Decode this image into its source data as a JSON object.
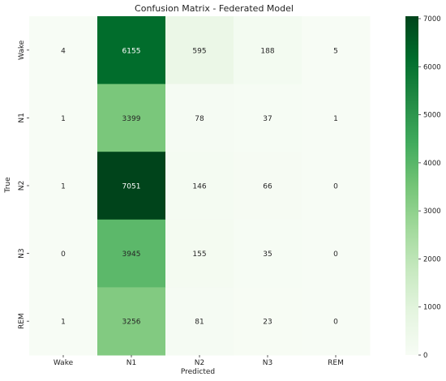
{
  "chart_data": {
    "type": "heatmap",
    "title": "Confusion Matrix - Federated Model",
    "xlabel": "Predicted",
    "ylabel": "True",
    "x_categories": [
      "Wake",
      "N1",
      "N2",
      "N3",
      "REM"
    ],
    "y_categories": [
      "Wake",
      "N1",
      "N2",
      "N3",
      "REM"
    ],
    "values": [
      [
        4,
        6155,
        595,
        188,
        5
      ],
      [
        1,
        3399,
        78,
        37,
        1
      ],
      [
        1,
        7051,
        146,
        66,
        0
      ],
      [
        0,
        3945,
        155,
        35,
        0
      ],
      [
        1,
        3256,
        81,
        23,
        0
      ]
    ],
    "colorbar": {
      "min": 0,
      "max": 7051,
      "ticks": [
        0,
        1000,
        2000,
        3000,
        4000,
        5000,
        6000,
        7000
      ]
    },
    "colormap": "Greens",
    "colors": {
      "low": "#f7fcf5",
      "high": "#00441b",
      "text_light": "#ffffff",
      "text_dark": "#262626"
    }
  }
}
